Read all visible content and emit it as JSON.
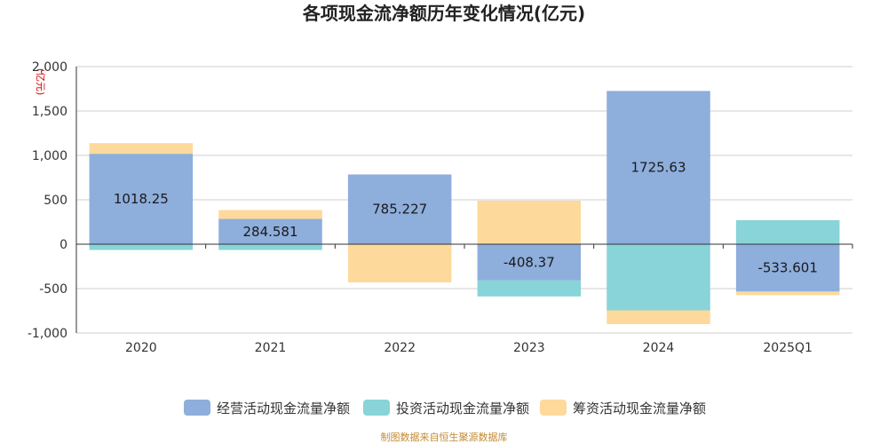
{
  "chart_data": {
    "type": "bar",
    "stacked": true,
    "title": "各项现金流净额历年变化情况(亿元)",
    "unit_label": "(亿元)",
    "categories": [
      "2020",
      "2021",
      "2022",
      "2023",
      "2024",
      "2025Q1"
    ],
    "ylim": [
      -1000,
      2000
    ],
    "yticks": [
      2000,
      1500,
      1000,
      500,
      0,
      -500,
      -1000
    ],
    "ytick_labels": [
      "2,000",
      "1,500",
      "1,000",
      "500",
      "0",
      "-500",
      "-1,000"
    ],
    "grid": true,
    "legend_position": "bottom",
    "series": [
      {
        "name": "经营活动现金流量净额",
        "color": "#8eaedc",
        "values": [
          1018.25,
          284.581,
          785.227,
          -408.37,
          1725.63,
          -533.601
        ],
        "labels": [
          "1018.25",
          "284.581",
          "785.227",
          "-408.37",
          "1725.63",
          "-533.601"
        ]
      },
      {
        "name": "投资活动现金流量净额",
        "color": "#88d4d8",
        "values": [
          -65,
          -65,
          0,
          -180,
          -745,
          270
        ]
      },
      {
        "name": "筹资活动现金流量净额",
        "color": "#fdd99c",
        "values": [
          120,
          100,
          -430,
          490,
          -155,
          -40
        ]
      }
    ]
  },
  "source_text": "制图数据来自恒生聚源数据库"
}
